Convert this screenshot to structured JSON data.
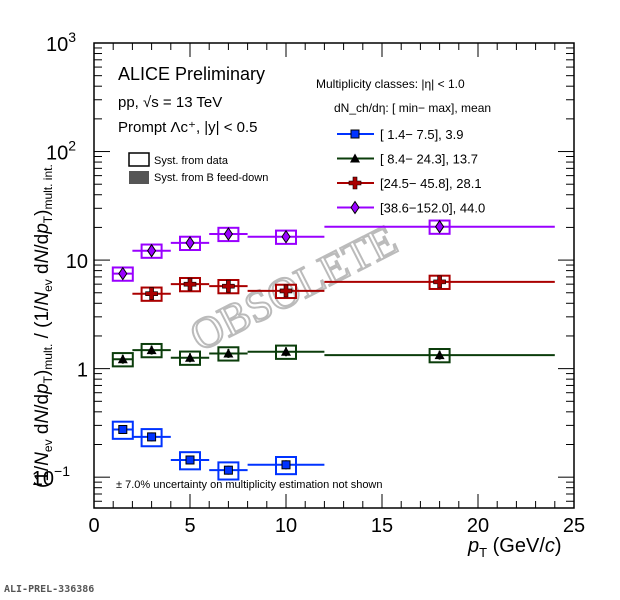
{
  "chart_data": {
    "type": "scatter",
    "title": "",
    "xlabel": "p_T (GeV/c)",
    "ylabel": "(1/N_ev dN/dp_T)_mult. / (1/N_ev dN/dp_T)_mult. int.",
    "xlim": [
      0,
      25
    ],
    "ylim": [
      0.052,
      1000
    ],
    "yscale": "log",
    "xticks": [
      "0",
      "5",
      "10",
      "15",
      "20",
      "25"
    ],
    "yticks": [
      {
        "base": "10",
        "exp": "−1"
      },
      {
        "base": "1",
        "exp": ""
      },
      {
        "base": "10",
        "exp": ""
      },
      {
        "base": "10",
        "exp": "2"
      },
      {
        "base": "10",
        "exp": "3"
      }
    ],
    "grid": false,
    "legend_placement": "top-right",
    "header_lines": [
      "ALICE Preliminary",
      "pp, √s = 13 TeV",
      "Prompt Λc⁺, |y| < 0.5"
    ],
    "syst_legend": [
      "Syst. from data",
      "Syst. from B feed-down"
    ],
    "legend_title": "Multiplicity classes: |η| < 1.0",
    "legend_subtitle": "dN_ch/dη: [ min−  max], mean",
    "note": "± 7.0% uncertainty on multiplicity estimation not shown",
    "watermark": "OBSOLETE",
    "bin_edges": [
      1,
      2,
      4,
      6,
      8,
      12,
      24
    ],
    "series": [
      {
        "name": "[  1.4−    7.5],   3.9",
        "color": "#0033ff",
        "marker": "square",
        "x": [
          1.5,
          3,
          5,
          7,
          10
        ],
        "y": [
          0.275,
          0.235,
          0.144,
          0.116,
          0.13
        ],
        "syst_rel": 0.18
      },
      {
        "name": "[  8.4−  24.3], 13.7",
        "color": "#0b3d0b",
        "marker": "triangle",
        "x": [
          1.5,
          3,
          5,
          7,
          10,
          18
        ],
        "y": [
          1.22,
          1.48,
          1.26,
          1.38,
          1.43,
          1.33
        ],
        "syst_rel": 0.14
      },
      {
        "name": "[24.5−  45.8], 28.1",
        "color": "#aa0000",
        "marker": "cross",
        "x": [
          3,
          5,
          7,
          10,
          18
        ],
        "y": [
          4.9,
          6.0,
          5.75,
          5.2,
          6.3
        ],
        "syst_rel": 0.14
      },
      {
        "name": "[38.6−152.0], 44.0",
        "color": "#9900ff",
        "marker": "diamond",
        "x": [
          1.5,
          3,
          5,
          7,
          10,
          18
        ],
        "y": [
          7.5,
          12.2,
          14.4,
          17.4,
          16.4,
          20.3
        ],
        "syst_rel": 0.14
      }
    ]
  },
  "footer": "ALI-PREL-336386"
}
